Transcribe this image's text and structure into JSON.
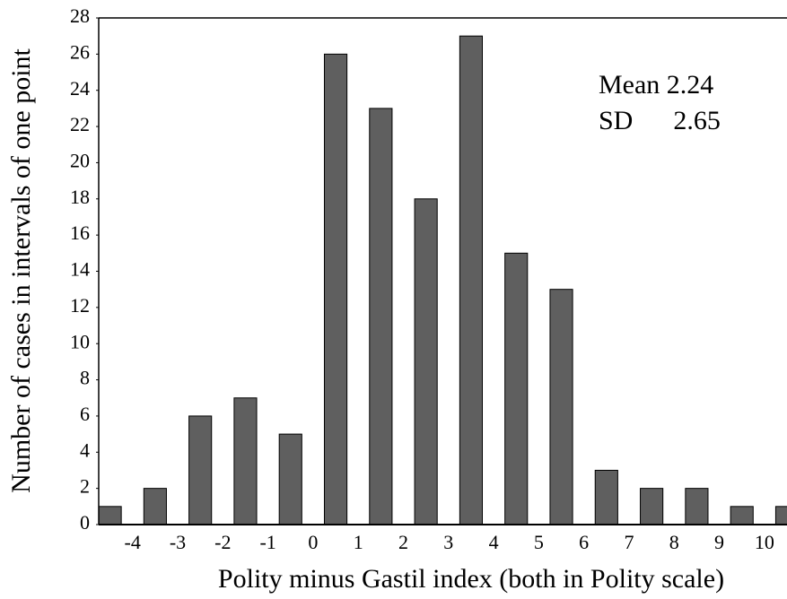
{
  "chart_data": {
    "type": "histogram",
    "x_label": "Polity minus Gastil index (both in Polity scale)",
    "y_label": "Number of cases in intervals of one point",
    "bins": [
      -5,
      -4,
      -3,
      -2,
      -1,
      0,
      1,
      2,
      3,
      4,
      5,
      6,
      7,
      8,
      9,
      10,
      11
    ],
    "values": [
      1,
      2,
      6,
      7,
      5,
      26,
      23,
      18,
      27,
      15,
      13,
      3,
      2,
      2,
      1,
      1
    ],
    "color": "#5f5f5f",
    "xlim": [
      -4.75,
      10.5
    ],
    "xticks": [
      -4,
      -3,
      -2,
      -1,
      0,
      1,
      2,
      3,
      4,
      5,
      6,
      7,
      8,
      9,
      10
    ],
    "ylim": [
      0,
      28
    ],
    "yticks": [
      0,
      2,
      4,
      6,
      8,
      10,
      12,
      14,
      16,
      18,
      20,
      22,
      24,
      26,
      28
    ],
    "annotations": [
      "Mean 2.24",
      "SD      2.65"
    ]
  }
}
